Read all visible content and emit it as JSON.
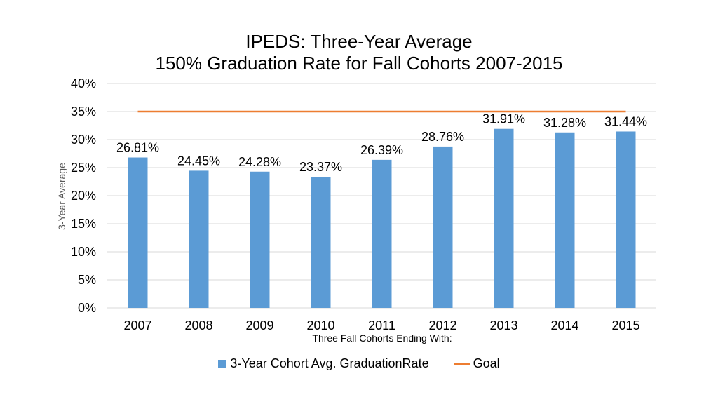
{
  "chart_data": {
    "type": "bar",
    "title_lines": [
      "IPEDS: Three-Year Average",
      "150% Graduation Rate for Fall Cohorts 2007-2015"
    ],
    "xlabel": "Three Fall Cohorts Ending With:",
    "ylabel": "3-Year Average",
    "categories": [
      "2007",
      "2008",
      "2009",
      "2010",
      "2011",
      "2012",
      "2013",
      "2014",
      "2015"
    ],
    "series": [
      {
        "name": "3-Year Cohort Avg. GraduationRate",
        "type": "bar",
        "color": "#5b9bd5",
        "values": [
          26.81,
          24.45,
          24.28,
          23.37,
          26.39,
          28.76,
          31.91,
          31.28,
          31.44
        ],
        "labels": [
          "26.81%",
          "24.45%",
          "24.28%",
          "23.37%",
          "26.39%",
          "28.76%",
          "31.91%",
          "31.28%",
          "31.44%"
        ]
      },
      {
        "name": "Goal",
        "type": "line",
        "color": "#ed7d31",
        "values": [
          35,
          35,
          35,
          35,
          35,
          35,
          35,
          35,
          35
        ]
      }
    ],
    "ylim": [
      0,
      40
    ],
    "yticks": [
      0,
      5,
      10,
      15,
      20,
      25,
      30,
      35,
      40
    ],
    "ytick_labels": [
      "0%",
      "5%",
      "10%",
      "15%",
      "20%",
      "25%",
      "30%",
      "35%",
      "40%"
    ],
    "grid": true,
    "legend_position": "bottom",
    "gridline_color": "#d9d9d9",
    "ylabel_color": "#595959"
  }
}
